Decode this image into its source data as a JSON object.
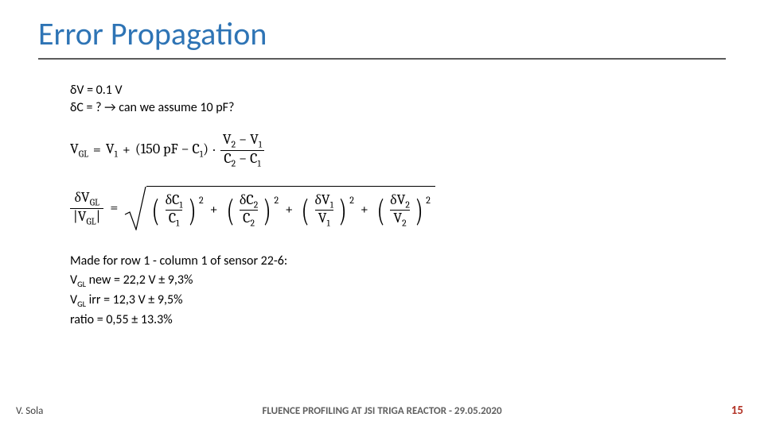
{
  "title": "Error Propagation",
  "title_color": "#2e74b5",
  "rule_color": "#5b5b5b",
  "assumptions": {
    "line1": "δV = 0.1 V",
    "line2": "δC = ? → can we assume 10 pF?"
  },
  "eq1": {
    "lhs": "V",
    "lhs_sub": "GL",
    "eq_sign": "=",
    "v1": "V",
    "v1_sub": "1",
    "plus": "+",
    "paren": "(150 pF − C",
    "c1_sub": "1",
    "paren_close": ")",
    "dot": "·",
    "frac_num_a": "V",
    "frac_num_a_sub": "2",
    "frac_num_minus": " − ",
    "frac_num_b": "V",
    "frac_num_b_sub": "1",
    "frac_den_a": "C",
    "frac_den_a_sub": "2",
    "frac_den_minus": " − ",
    "frac_den_b": "C",
    "frac_den_b_sub": "1"
  },
  "eq2": {
    "lhs_num_delta": "δV",
    "lhs_num_sub": "GL",
    "lhs_den_abs_open": "|",
    "lhs_den": "V",
    "lhs_den_sub": "GL",
    "lhs_den_abs_close": "|",
    "eq_sign": "=",
    "terms": [
      {
        "num_delta": "δC",
        "num_sub": "1",
        "den": "C",
        "den_sub": "1"
      },
      {
        "num_delta": "δC",
        "num_sub": "2",
        "den": "C",
        "den_sub": "2"
      },
      {
        "num_delta": "δV",
        "num_sub": "1",
        "den": "V",
        "den_sub": "1"
      },
      {
        "num_delta": "δV",
        "num_sub": "2",
        "den": "V",
        "den_sub": "2"
      }
    ],
    "power": "2",
    "plus": "+"
  },
  "results": {
    "header": "Made for row 1 - column 1 of sensor 22-6:",
    "line2_pre": "V",
    "line2_sub": "GL",
    "line2_rest": " new = 22,2 V ± 9,3%",
    "line3_pre": "V",
    "line3_sub": "GL",
    "line3_rest": " irr = 12,3 V ± 9,5%",
    "line4": "ratio = 0,55 ± 13.3%"
  },
  "footer": {
    "author": "V. Sola",
    "center": "FLUENCE PROFILING AT JSI TRIGA REACTOR - 29.05.2020",
    "page": "15",
    "page_color": "#b33528"
  }
}
